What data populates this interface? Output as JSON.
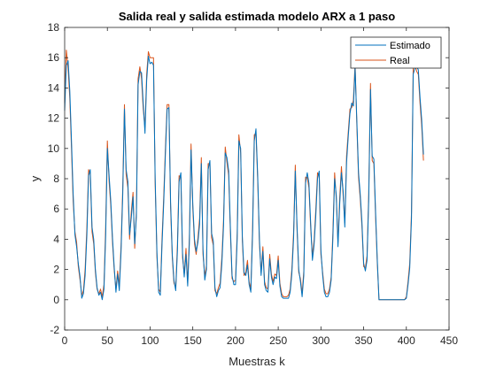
{
  "chart_data": {
    "type": "line",
    "title": "Salida real y salida estimada modelo ARX a 1 paso",
    "xlabel": "Muestras k",
    "ylabel": "y",
    "xlim": [
      0,
      450
    ],
    "ylim": [
      -2,
      18
    ],
    "xticks": [
      0,
      50,
      100,
      150,
      200,
      250,
      300,
      350,
      400,
      450
    ],
    "yticks": [
      -2,
      0,
      2,
      4,
      6,
      8,
      10,
      12,
      14,
      16,
      18
    ],
    "grid": false,
    "legend_position": "top-right",
    "series": [
      {
        "name": "Estimado",
        "color": "#0072BD",
        "x": [
          0,
          2,
          4,
          6,
          8,
          10,
          12,
          14,
          16,
          18,
          20,
          22,
          24,
          26,
          28,
          30,
          32,
          34,
          36,
          38,
          40,
          42,
          44,
          46,
          48,
          50,
          52,
          54,
          56,
          58,
          60,
          62,
          64,
          66,
          68,
          70,
          72,
          74,
          76,
          78,
          80,
          82,
          84,
          86,
          88,
          90,
          92,
          94,
          96,
          98,
          100,
          102,
          104,
          106,
          108,
          110,
          112,
          114,
          116,
          118,
          120,
          122,
          124,
          126,
          128,
          130,
          132,
          134,
          136,
          138,
          140,
          142,
          144,
          146,
          148,
          150,
          152,
          154,
          156,
          158,
          160,
          162,
          164,
          166,
          168,
          170,
          172,
          174,
          176,
          178,
          180,
          182,
          184,
          186,
          188,
          190,
          192,
          194,
          196,
          198,
          200,
          202,
          204,
          206,
          208,
          210,
          212,
          214,
          216,
          218,
          220,
          222,
          224,
          226,
          228,
          230,
          232,
          234,
          236,
          238,
          240,
          242,
          244,
          246,
          248,
          250,
          252,
          254,
          256,
          258,
          260,
          262,
          264,
          266,
          268,
          270,
          272,
          274,
          276,
          278,
          280,
          282,
          284,
          286,
          288,
          290,
          292,
          294,
          296,
          298,
          300,
          302,
          304,
          306,
          308,
          310,
          312,
          314,
          316,
          318,
          320,
          322,
          324,
          326,
          328,
          330,
          332,
          334,
          336,
          338,
          340,
          342,
          344,
          346,
          348,
          350,
          352,
          354,
          356,
          358,
          360,
          362,
          364,
          366,
          368,
          370,
          372,
          374,
          376,
          378,
          380,
          382,
          384,
          386,
          388,
          390,
          392,
          394,
          396,
          398,
          400,
          402,
          404,
          406,
          408,
          410,
          412,
          414,
          416,
          418,
          420
        ],
        "y": [
          12.5,
          15.5,
          15.8,
          13.8,
          10.5,
          7.0,
          4.3,
          3.5,
          2.4,
          1.5,
          0.1,
          0.4,
          1.6,
          4.3,
          8.2,
          8.6,
          4.8,
          4.0,
          2.0,
          0.8,
          0.3,
          0.5,
          0.0,
          0.7,
          4.2,
          10.0,
          8.2,
          6.5,
          4.1,
          2.2,
          0.5,
          1.7,
          0.6,
          3.2,
          7.0,
          12.6,
          8.6,
          7.8,
          4.3,
          5.4,
          6.8,
          3.7,
          5.5,
          14.2,
          15.1,
          15.0,
          13.0,
          11.0,
          14.5,
          16.1,
          15.6,
          15.7,
          15.5,
          8.0,
          3.1,
          0.5,
          0.3,
          3.6,
          6.5,
          9.7,
          12.6,
          12.7,
          6.5,
          3.0,
          1.3,
          0.6,
          3.2,
          7.8,
          8.4,
          3.1,
          1.5,
          3.0,
          0.9,
          3.7,
          9.9,
          6.3,
          4.0,
          3.2,
          3.8,
          5.0,
          9.0,
          3.3,
          1.3,
          2.0,
          8.6,
          9.2,
          4.4,
          3.9,
          0.8,
          0.2,
          0.6,
          0.8,
          2.4,
          4.9,
          9.7,
          9.4,
          8.5,
          4.8,
          1.6,
          1.0,
          1.0,
          4.0,
          10.5,
          10.0,
          4.2,
          1.8,
          1.6,
          2.3,
          1.0,
          0.5,
          4.4,
          10.5,
          11.3,
          8.1,
          4.0,
          1.6,
          3.2,
          1.0,
          0.6,
          0.5,
          2.7,
          1.5,
          1.0,
          1.5,
          1.4,
          2.6,
          0.9,
          0.2,
          0.1,
          0.1,
          0.1,
          0.1,
          0.5,
          1.7,
          4.1,
          8.5,
          5.0,
          2.0,
          1.2,
          0.2,
          1.6,
          7.7,
          8.4,
          7.7,
          5.0,
          2.6,
          3.6,
          5.5,
          8.0,
          8.5,
          3.3,
          1.6,
          0.5,
          0.2,
          0.2,
          0.5,
          1.3,
          4.0,
          8.0,
          6.9,
          3.5,
          6.4,
          8.4,
          7.2,
          4.8,
          9.1,
          10.8,
          12.3,
          13.0,
          12.8,
          15.3,
          12.0,
          8.4,
          7.0,
          5.2,
          2.4,
          1.9,
          2.6,
          6.6,
          13.9,
          9.5,
          9.3,
          5.7,
          2.6,
          0.0,
          0.0,
          0.0,
          0.0,
          0.0,
          0.0,
          0.0,
          0.0,
          0.0,
          0.0,
          0.0,
          0.0,
          0.0,
          0.0,
          0.0,
          0.0,
          0.1,
          1.0,
          2.1,
          5.4,
          14.9,
          15.3,
          15.4,
          15.2,
          13.4,
          11.9,
          9.6
        ]
      },
      {
        "name": "Real",
        "color": "#D95319",
        "x": [
          0,
          2,
          4,
          6,
          8,
          10,
          12,
          14,
          16,
          18,
          20,
          22,
          24,
          26,
          28,
          30,
          32,
          34,
          36,
          38,
          40,
          42,
          44,
          46,
          48,
          50,
          52,
          54,
          56,
          58,
          60,
          62,
          64,
          66,
          68,
          70,
          72,
          74,
          76,
          78,
          80,
          82,
          84,
          86,
          88,
          90,
          92,
          94,
          96,
          98,
          100,
          102,
          104,
          106,
          108,
          110,
          112,
          114,
          116,
          118,
          120,
          122,
          124,
          126,
          128,
          130,
          132,
          134,
          136,
          138,
          140,
          142,
          144,
          146,
          148,
          150,
          152,
          154,
          156,
          158,
          160,
          162,
          164,
          166,
          168,
          170,
          172,
          174,
          176,
          178,
          180,
          182,
          184,
          186,
          188,
          190,
          192,
          194,
          196,
          198,
          200,
          202,
          204,
          206,
          208,
          210,
          212,
          214,
          216,
          218,
          220,
          222,
          224,
          226,
          228,
          230,
          232,
          234,
          236,
          238,
          240,
          242,
          244,
          246,
          248,
          250,
          252,
          254,
          256,
          258,
          260,
          262,
          264,
          266,
          268,
          270,
          272,
          274,
          276,
          278,
          280,
          282,
          284,
          286,
          288,
          290,
          292,
          294,
          296,
          298,
          300,
          302,
          304,
          306,
          308,
          310,
          312,
          314,
          316,
          318,
          320,
          322,
          324,
          326,
          328,
          330,
          332,
          334,
          336,
          338,
          340,
          342,
          344,
          346,
          348,
          350,
          352,
          354,
          356,
          358,
          360,
          362,
          364,
          366,
          368,
          370,
          372,
          374,
          376,
          378,
          380,
          382,
          384,
          386,
          388,
          390,
          392,
          394,
          396,
          398,
          400,
          402,
          404,
          406,
          408,
          410,
          412,
          414,
          416,
          418,
          420
        ],
        "y": [
          13.0,
          16.5,
          15.3,
          13.3,
          10.0,
          6.5,
          4.5,
          3.8,
          2.2,
          1.3,
          0.3,
          0.6,
          2.0,
          4.8,
          8.6,
          8.3,
          4.5,
          3.7,
          1.8,
          0.7,
          0.4,
          0.7,
          0.2,
          1.0,
          4.8,
          10.5,
          7.8,
          6.2,
          3.8,
          2.0,
          0.7,
          1.9,
          0.9,
          3.6,
          7.4,
          12.9,
          8.3,
          7.4,
          4.0,
          5.8,
          7.1,
          3.4,
          5.9,
          14.6,
          15.4,
          14.6,
          12.6,
          11.4,
          14.9,
          16.4,
          16.0,
          16.0,
          16.0,
          7.6,
          2.8,
          0.7,
          0.5,
          4.0,
          6.9,
          10.1,
          12.9,
          12.9,
          6.1,
          2.8,
          1.1,
          0.8,
          3.6,
          8.2,
          8.1,
          2.8,
          1.7,
          3.4,
          1.1,
          4.1,
          10.3,
          6.0,
          3.7,
          3.0,
          4.1,
          5.4,
          9.4,
          3.0,
          1.5,
          2.3,
          9.0,
          9.0,
          4.1,
          3.6,
          0.6,
          0.4,
          0.8,
          1.1,
          2.8,
          5.3,
          10.1,
          9.1,
          8.2,
          4.5,
          1.4,
          1.2,
          1.3,
          4.4,
          10.9,
          9.7,
          3.9,
          1.6,
          1.8,
          2.6,
          1.2,
          0.7,
          4.8,
          10.9,
          11.0,
          7.8,
          3.7,
          1.8,
          3.5,
          1.2,
          0.8,
          0.7,
          3.0,
          1.7,
          1.2,
          1.7,
          1.6,
          2.9,
          1.1,
          0.4,
          0.2,
          0.2,
          0.2,
          0.3,
          0.7,
          2.0,
          4.5,
          8.9,
          4.7,
          1.8,
          1.4,
          0.4,
          1.9,
          8.1,
          8.1,
          7.4,
          4.7,
          2.9,
          3.9,
          5.9,
          8.4,
          8.2,
          3.0,
          1.8,
          0.7,
          0.4,
          0.4,
          0.7,
          1.5,
          4.4,
          8.4,
          6.6,
          3.8,
          6.8,
          8.8,
          6.9,
          5.1,
          9.5,
          11.1,
          12.6,
          12.7,
          13.2,
          15.6,
          11.7,
          8.1,
          6.7,
          4.9,
          2.2,
          2.1,
          2.9,
          7.0,
          14.3,
          9.2,
          9.0,
          5.4,
          2.4,
          0.0,
          0.0,
          0.0,
          0.0,
          0.0,
          0.0,
          0.0,
          0.0,
          0.0,
          0.0,
          0.0,
          0.0,
          0.0,
          0.0,
          0.0,
          0.0,
          0.2,
          1.2,
          2.4,
          5.8,
          15.3,
          15.6,
          15.1,
          14.9,
          13.0,
          11.5,
          9.2
        ]
      }
    ]
  }
}
